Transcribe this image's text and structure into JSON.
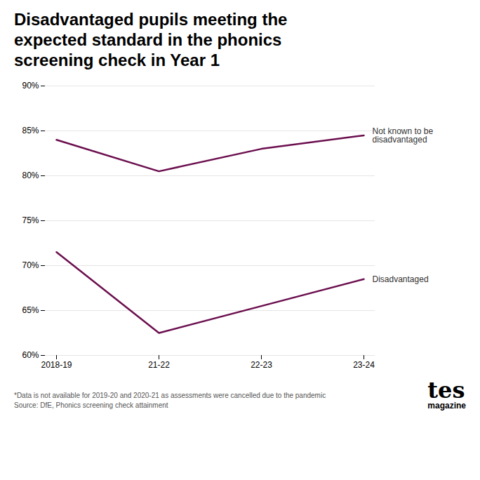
{
  "chart_data": {
    "type": "line",
    "title": "Disadvantaged pupils meeting the\nexpected standard in the phonics\nscreening check in Year 1",
    "categories": [
      "2018-19",
      "21-22",
      "22-23",
      "23-24"
    ],
    "series": [
      {
        "name": "Not known to be\ndisadvantaged",
        "color": "#6B0E4E",
        "values": [
          84.0,
          80.5,
          83.0,
          84.5
        ]
      },
      {
        "name": "Disadvantaged",
        "color": "#6B0E4E",
        "values": [
          71.5,
          62.5,
          65.5,
          68.5
        ]
      }
    ],
    "ylim": [
      60,
      90
    ],
    "yticks": [
      {
        "value": 60,
        "label": "60%"
      },
      {
        "value": 65,
        "label": "65%"
      },
      {
        "value": 70,
        "label": "70%"
      },
      {
        "value": 75,
        "label": "75%"
      },
      {
        "value": 80,
        "label": "80%"
      },
      {
        "value": 85,
        "label": "85%"
      },
      {
        "value": 90,
        "label": "90%"
      }
    ],
    "grid": true,
    "annotations": [
      "*Data is not available for 2019-20 and 2020-21 as assessments were cancelled due to the pandemic",
      "Source: DfE, Phonics screening check attainment",
      "tes",
      "magazine"
    ]
  }
}
